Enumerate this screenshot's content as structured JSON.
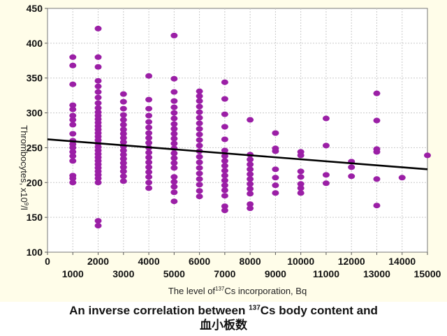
{
  "chart_data": {
    "type": "scatter",
    "title": "An inverse correlation between ¹³⁷Cs body content and 血小板数",
    "xlabel": "The level of¹³⁷Cs incorporation, Bq",
    "ylabel": "Thrombocytes, x10⁹/l",
    "x_ticks_bottom": [
      1000,
      3000,
      5000,
      7000,
      9000,
      11000,
      13000,
      15000
    ],
    "x_ticks_top": [
      0,
      2000,
      4000,
      6000,
      8000,
      10000,
      12000,
      14000
    ],
    "y_ticks": [
      100,
      150,
      200,
      250,
      300,
      350,
      400,
      450
    ],
    "ylim": [
      100,
      450
    ],
    "grid": true,
    "point_color": "#9b1fa6",
    "line_color": "#000000",
    "trend_line": [
      {
        "x": 0,
        "y": 262
      },
      {
        "x": 15000,
        "y": 219
      }
    ],
    "series": [
      {
        "values": [
          {
            "x": 1000,
            "y": 380
          },
          {
            "x": 1000,
            "y": 368
          },
          {
            "x": 1000,
            "y": 341
          },
          {
            "x": 1000,
            "y": 311
          },
          {
            "x": 1000,
            "y": 305
          },
          {
            "x": 1000,
            "y": 296
          },
          {
            "x": 1000,
            "y": 290
          },
          {
            "x": 1000,
            "y": 283
          },
          {
            "x": 1000,
            "y": 270
          },
          {
            "x": 1000,
            "y": 260
          },
          {
            "x": 1000,
            "y": 255
          },
          {
            "x": 1000,
            "y": 250
          },
          {
            "x": 1000,
            "y": 244
          },
          {
            "x": 1000,
            "y": 238
          },
          {
            "x": 1000,
            "y": 231
          },
          {
            "x": 1000,
            "y": 210
          },
          {
            "x": 1000,
            "y": 206
          },
          {
            "x": 1000,
            "y": 200
          },
          {
            "x": 2000,
            "y": 421
          },
          {
            "x": 2000,
            "y": 380
          },
          {
            "x": 2000,
            "y": 366
          },
          {
            "x": 2000,
            "y": 346
          },
          {
            "x": 2000,
            "y": 338
          },
          {
            "x": 2000,
            "y": 330
          },
          {
            "x": 2000,
            "y": 322
          },
          {
            "x": 2000,
            "y": 314
          },
          {
            "x": 2000,
            "y": 307
          },
          {
            "x": 2000,
            "y": 301
          },
          {
            "x": 2000,
            "y": 296
          },
          {
            "x": 2000,
            "y": 291
          },
          {
            "x": 2000,
            "y": 286
          },
          {
            "x": 2000,
            "y": 281
          },
          {
            "x": 2000,
            "y": 276
          },
          {
            "x": 2000,
            "y": 271
          },
          {
            "x": 2000,
            "y": 266
          },
          {
            "x": 2000,
            "y": 261
          },
          {
            "x": 2000,
            "y": 256
          },
          {
            "x": 2000,
            "y": 251
          },
          {
            "x": 2000,
            "y": 246
          },
          {
            "x": 2000,
            "y": 241
          },
          {
            "x": 2000,
            "y": 236
          },
          {
            "x": 2000,
            "y": 231
          },
          {
            "x": 2000,
            "y": 226
          },
          {
            "x": 2000,
            "y": 221
          },
          {
            "x": 2000,
            "y": 216
          },
          {
            "x": 2000,
            "y": 211
          },
          {
            "x": 2000,
            "y": 206
          },
          {
            "x": 2000,
            "y": 200
          },
          {
            "x": 2000,
            "y": 145
          },
          {
            "x": 2000,
            "y": 138
          },
          {
            "x": 3000,
            "y": 327
          },
          {
            "x": 3000,
            "y": 316
          },
          {
            "x": 3000,
            "y": 306
          },
          {
            "x": 3000,
            "y": 297
          },
          {
            "x": 3000,
            "y": 290
          },
          {
            "x": 3000,
            "y": 283
          },
          {
            "x": 3000,
            "y": 276
          },
          {
            "x": 3000,
            "y": 270
          },
          {
            "x": 3000,
            "y": 264
          },
          {
            "x": 3000,
            "y": 258
          },
          {
            "x": 3000,
            "y": 252
          },
          {
            "x": 3000,
            "y": 246
          },
          {
            "x": 3000,
            "y": 240
          },
          {
            "x": 3000,
            "y": 234
          },
          {
            "x": 3000,
            "y": 228
          },
          {
            "x": 3000,
            "y": 222
          },
          {
            "x": 3000,
            "y": 216
          },
          {
            "x": 3000,
            "y": 209
          },
          {
            "x": 3000,
            "y": 202
          },
          {
            "x": 4000,
            "y": 353
          },
          {
            "x": 4000,
            "y": 319
          },
          {
            "x": 4000,
            "y": 306
          },
          {
            "x": 4000,
            "y": 296
          },
          {
            "x": 4000,
            "y": 287
          },
          {
            "x": 4000,
            "y": 279
          },
          {
            "x": 4000,
            "y": 271
          },
          {
            "x": 4000,
            "y": 264
          },
          {
            "x": 4000,
            "y": 257
          },
          {
            "x": 4000,
            "y": 250
          },
          {
            "x": 4000,
            "y": 243
          },
          {
            "x": 4000,
            "y": 236
          },
          {
            "x": 4000,
            "y": 229
          },
          {
            "x": 4000,
            "y": 222
          },
          {
            "x": 4000,
            "y": 215
          },
          {
            "x": 4000,
            "y": 208
          },
          {
            "x": 4000,
            "y": 200
          },
          {
            "x": 4000,
            "y": 192
          },
          {
            "x": 5000,
            "y": 411
          },
          {
            "x": 5000,
            "y": 349
          },
          {
            "x": 5000,
            "y": 330
          },
          {
            "x": 5000,
            "y": 317
          },
          {
            "x": 5000,
            "y": 308
          },
          {
            "x": 5000,
            "y": 300
          },
          {
            "x": 5000,
            "y": 292
          },
          {
            "x": 5000,
            "y": 284
          },
          {
            "x": 5000,
            "y": 277
          },
          {
            "x": 5000,
            "y": 270
          },
          {
            "x": 5000,
            "y": 263
          },
          {
            "x": 5000,
            "y": 256
          },
          {
            "x": 5000,
            "y": 249
          },
          {
            "x": 5000,
            "y": 242
          },
          {
            "x": 5000,
            "y": 235
          },
          {
            "x": 5000,
            "y": 228
          },
          {
            "x": 5000,
            "y": 221
          },
          {
            "x": 5000,
            "y": 208
          },
          {
            "x": 5000,
            "y": 201
          },
          {
            "x": 5000,
            "y": 194
          },
          {
            "x": 5000,
            "y": 186
          },
          {
            "x": 5000,
            "y": 173
          },
          {
            "x": 6000,
            "y": 331
          },
          {
            "x": 6000,
            "y": 324
          },
          {
            "x": 6000,
            "y": 317
          },
          {
            "x": 6000,
            "y": 309
          },
          {
            "x": 6000,
            "y": 301
          },
          {
            "x": 6000,
            "y": 293
          },
          {
            "x": 6000,
            "y": 285
          },
          {
            "x": 6000,
            "y": 277
          },
          {
            "x": 6000,
            "y": 269
          },
          {
            "x": 6000,
            "y": 261
          },
          {
            "x": 6000,
            "y": 253
          },
          {
            "x": 6000,
            "y": 245
          },
          {
            "x": 6000,
            "y": 237
          },
          {
            "x": 6000,
            "y": 229
          },
          {
            "x": 6000,
            "y": 221
          },
          {
            "x": 6000,
            "y": 213
          },
          {
            "x": 6000,
            "y": 205
          },
          {
            "x": 6000,
            "y": 197
          },
          {
            "x": 6000,
            "y": 188
          },
          {
            "x": 6000,
            "y": 180
          },
          {
            "x": 7000,
            "y": 344
          },
          {
            "x": 7000,
            "y": 320
          },
          {
            "x": 7000,
            "y": 298
          },
          {
            "x": 7000,
            "y": 280
          },
          {
            "x": 7000,
            "y": 262
          },
          {
            "x": 7000,
            "y": 246
          },
          {
            "x": 7000,
            "y": 238
          },
          {
            "x": 7000,
            "y": 231
          },
          {
            "x": 7000,
            "y": 224
          },
          {
            "x": 7000,
            "y": 217
          },
          {
            "x": 7000,
            "y": 210
          },
          {
            "x": 7000,
            "y": 203
          },
          {
            "x": 7000,
            "y": 196
          },
          {
            "x": 7000,
            "y": 189
          },
          {
            "x": 7000,
            "y": 181
          },
          {
            "x": 7000,
            "y": 166
          },
          {
            "x": 7000,
            "y": 160
          },
          {
            "x": 8000,
            "y": 290
          },
          {
            "x": 8000,
            "y": 240
          },
          {
            "x": 8000,
            "y": 233
          },
          {
            "x": 8000,
            "y": 226
          },
          {
            "x": 8000,
            "y": 219
          },
          {
            "x": 8000,
            "y": 212
          },
          {
            "x": 8000,
            "y": 205
          },
          {
            "x": 8000,
            "y": 198
          },
          {
            "x": 8000,
            "y": 191
          },
          {
            "x": 8000,
            "y": 184
          },
          {
            "x": 8000,
            "y": 169
          },
          {
            "x": 8000,
            "y": 163
          },
          {
            "x": 9000,
            "y": 271
          },
          {
            "x": 9000,
            "y": 249
          },
          {
            "x": 9000,
            "y": 245
          },
          {
            "x": 9000,
            "y": 219
          },
          {
            "x": 9000,
            "y": 207
          },
          {
            "x": 9000,
            "y": 196
          },
          {
            "x": 9000,
            "y": 185
          },
          {
            "x": 10000,
            "y": 244
          },
          {
            "x": 10000,
            "y": 239
          },
          {
            "x": 10000,
            "y": 216
          },
          {
            "x": 10000,
            "y": 208
          },
          {
            "x": 10000,
            "y": 198
          },
          {
            "x": 10000,
            "y": 192
          },
          {
            "x": 10000,
            "y": 185
          },
          {
            "x": 11000,
            "y": 292
          },
          {
            "x": 11000,
            "y": 253
          },
          {
            "x": 11000,
            "y": 211
          },
          {
            "x": 11000,
            "y": 199
          },
          {
            "x": 12000,
            "y": 230
          },
          {
            "x": 12000,
            "y": 222
          },
          {
            "x": 12000,
            "y": 209
          },
          {
            "x": 13000,
            "y": 328
          },
          {
            "x": 13000,
            "y": 289
          },
          {
            "x": 13000,
            "y": 248
          },
          {
            "x": 13000,
            "y": 244
          },
          {
            "x": 13000,
            "y": 205
          },
          {
            "x": 13000,
            "y": 167
          },
          {
            "x": 14000,
            "y": 207
          },
          {
            "x": 15000,
            "y": 239
          }
        ]
      }
    ]
  },
  "caption": {
    "line1_pre": "An inverse correlation between ",
    "line1_sup": "137",
    "line1_post": "Cs body content and",
    "line2": "血小板数"
  },
  "axis_text": {
    "x_pre": "The level of",
    "x_sup": "137",
    "x_post": "Cs incorporation, Bq",
    "y_main": "Thrombocytes, x10",
    "y_sup": "9",
    "y_post": "/l"
  }
}
